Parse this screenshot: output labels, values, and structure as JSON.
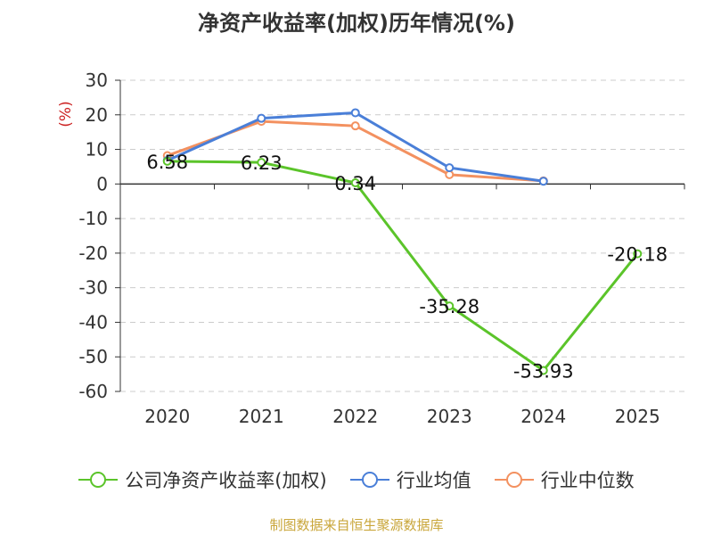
{
  "chart_data": {
    "type": "line",
    "title": "净资产收益率(加权)历年情况(%)",
    "ylabel": "(%)",
    "xlabel": "",
    "categories": [
      "2020",
      "2021",
      "2022",
      "2023",
      "2024",
      "2025"
    ],
    "ylim": [
      -60,
      30
    ],
    "yticks": [
      30,
      20,
      10,
      0,
      -10,
      -20,
      -30,
      -40,
      -50,
      -60
    ],
    "grid": "dashed-horizontal",
    "legend_position": "bottom",
    "series": [
      {
        "name": "公司净资产收益率(加权)",
        "color": "#5bc42a",
        "values": [
          6.58,
          6.23,
          0.34,
          -35.28,
          -53.93,
          -20.18
        ],
        "labels": [
          "6.58",
          "6.23",
          "0.34",
          "-35.28",
          "-53.93",
          "-20.18"
        ]
      },
      {
        "name": "行业均值",
        "color": "#4a7fd8",
        "values": [
          6.8,
          19.0,
          20.6,
          4.7,
          0.8,
          null
        ]
      },
      {
        "name": "行业中位数",
        "color": "#f39160",
        "values": [
          8.2,
          18.1,
          16.8,
          2.7,
          0.9,
          null
        ]
      }
    ]
  },
  "footer": {
    "source": "制图数据来自恒生聚源数据库"
  }
}
